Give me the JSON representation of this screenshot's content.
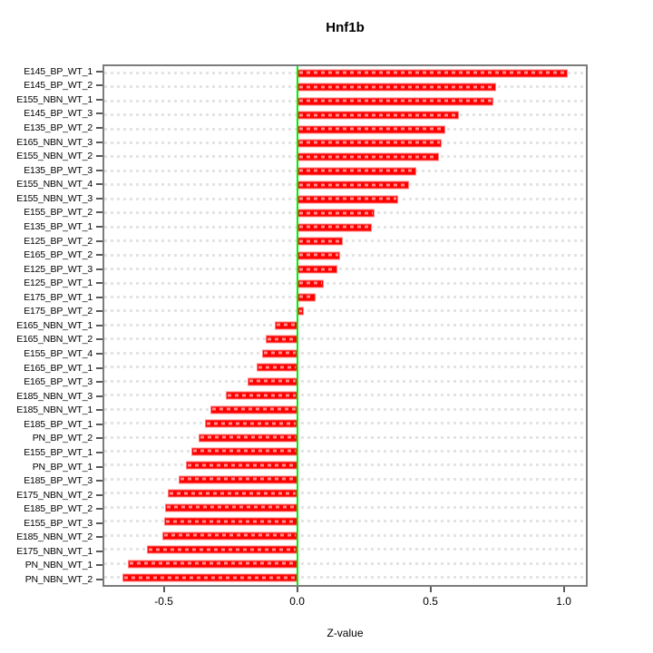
{
  "chart_data": {
    "type": "bar",
    "orientation": "horizontal",
    "title": "Hnf1b",
    "xlabel": "Z-value",
    "categories": [
      "E145_BP_WT_1",
      "E145_BP_WT_2",
      "E155_NBN_WT_1",
      "E145_BP_WT_3",
      "E135_BP_WT_2",
      "E165_NBN_WT_3",
      "E155_NBN_WT_2",
      "E135_BP_WT_3",
      "E155_NBN_WT_4",
      "E155_NBN_WT_3",
      "E155_BP_WT_2",
      "E135_BP_WT_1",
      "E125_BP_WT_2",
      "E165_BP_WT_2",
      "E125_BP_WT_3",
      "E125_BP_WT_1",
      "E175_BP_WT_1",
      "E175_BP_WT_2",
      "E165_NBN_WT_1",
      "E165_NBN_WT_2",
      "E155_BP_WT_4",
      "E165_BP_WT_1",
      "E165_BP_WT_3",
      "E185_NBN_WT_3",
      "E185_NBN_WT_1",
      "E185_BP_WT_1",
      "PN_BP_WT_2",
      "E155_BP_WT_1",
      "PN_BP_WT_1",
      "E185_BP_WT_3",
      "E175_NBN_WT_2",
      "E185_BP_WT_2",
      "E155_BP_WT_3",
      "E185_NBN_WT_2",
      "E175_NBN_WT_1",
      "PN_NBN_WT_1",
      "PN_NBN_WT_2"
    ],
    "values": [
      1.02,
      0.75,
      0.74,
      0.61,
      0.56,
      0.545,
      0.535,
      0.45,
      0.42,
      0.38,
      0.29,
      0.28,
      0.17,
      0.16,
      0.15,
      0.1,
      0.07,
      0.025,
      -0.085,
      -0.12,
      -0.135,
      -0.155,
      -0.19,
      -0.27,
      -0.33,
      -0.35,
      -0.375,
      -0.4,
      -0.42,
      -0.45,
      -0.49,
      -0.5,
      -0.505,
      -0.51,
      -0.57,
      -0.64,
      -0.66
    ],
    "xlim": [
      -0.73,
      1.09
    ],
    "xticks": [
      -0.5,
      0.0,
      0.5,
      1.0
    ],
    "xtick_labels": [
      "-0.5",
      "0.0",
      "0.5",
      "1.0"
    ],
    "grid": true,
    "legend": "none",
    "colors": {
      "bar": "#fe0000",
      "bar_border": "#ff8585",
      "bar_dash": "rgba(255,255,255,0.55)",
      "zero_line": "#00f000",
      "grid_line": "#e3e3e3",
      "box": "#7c7c7c",
      "text": "#000000",
      "background": "#ffffff"
    }
  }
}
